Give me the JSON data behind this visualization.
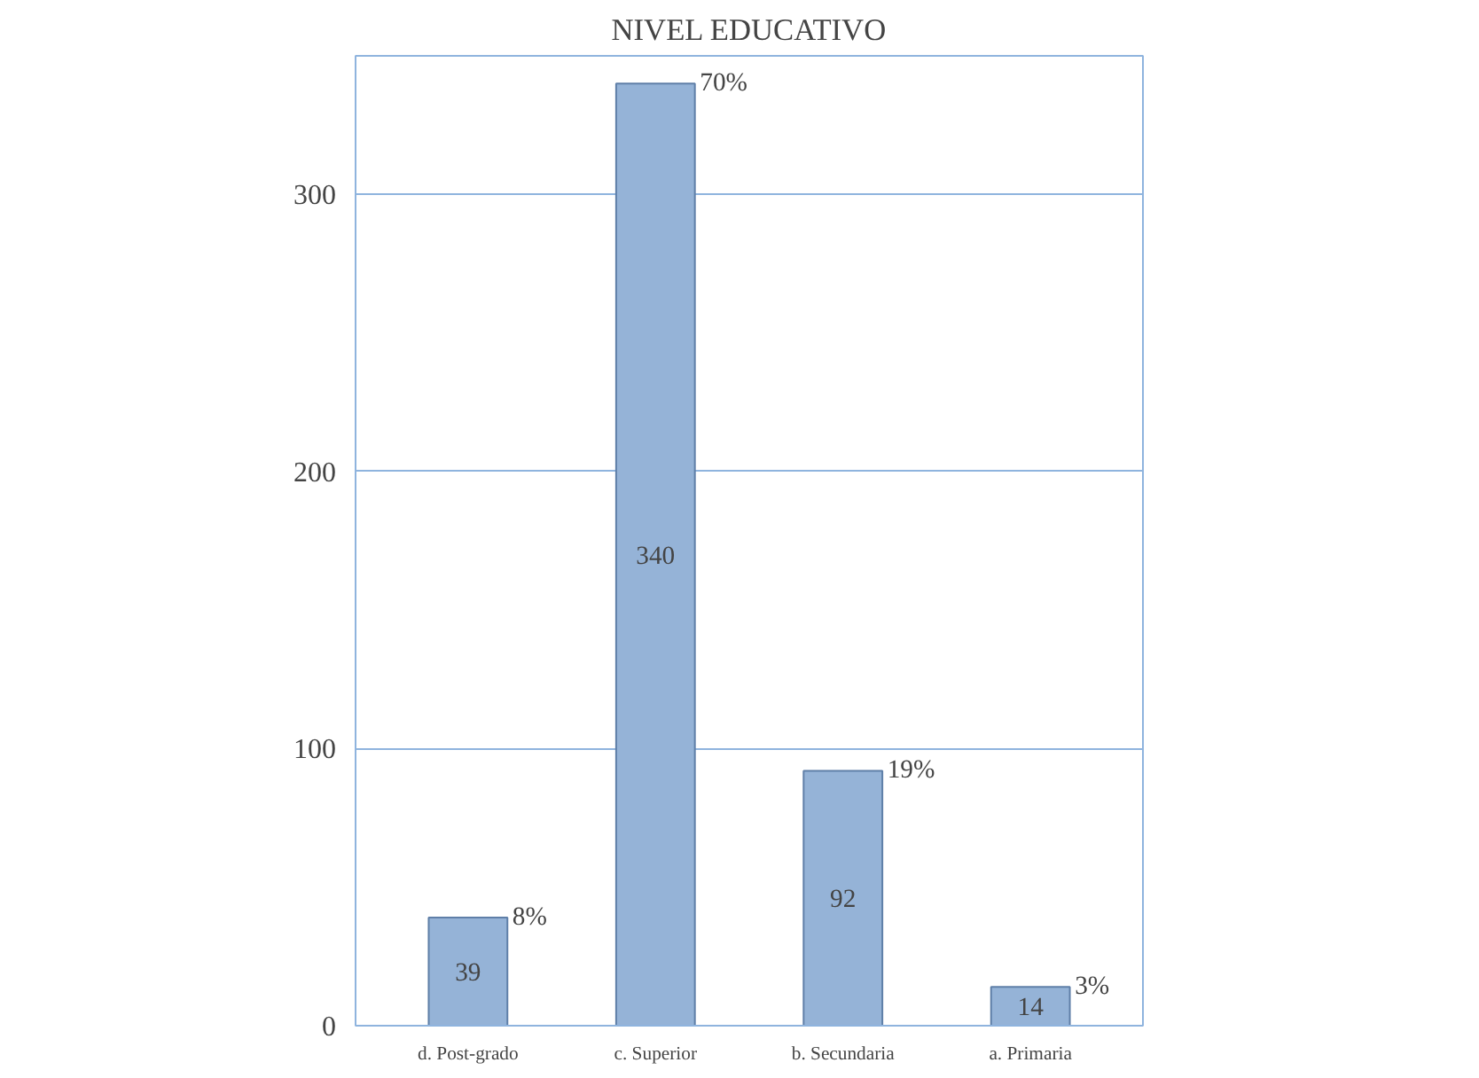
{
  "chart_data": {
    "type": "bar",
    "title": "NIVEL EDUCATIVO",
    "categories": [
      "d. Post-grado",
      "c. Superior",
      "b. Secundaria",
      "a. Primaria"
    ],
    "values": [
      39,
      340,
      92,
      14
    ],
    "color": "#95b3d7",
    "data_labels": true,
    "ylim": [
      0,
      350
    ],
    "yticks": [
      0,
      100,
      200,
      300
    ],
    "grid": "y",
    "annotations": [
      {
        "text": "8%",
        "x": "d. Post-grado",
        "y": 39
      },
      {
        "text": "70%",
        "x": "c. Superior",
        "y": 340
      },
      {
        "text": "19%",
        "x": "b. Secundaria",
        "y": 92
      },
      {
        "text": "3%",
        "x": "a. Primaria",
        "y": 14
      }
    ]
  }
}
